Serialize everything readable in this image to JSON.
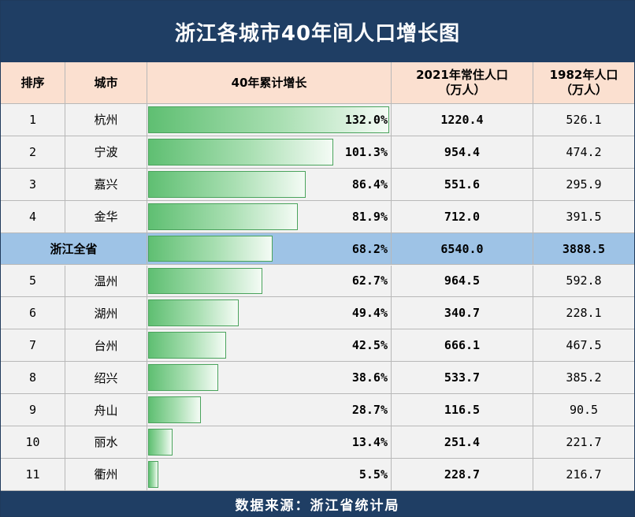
{
  "title": "浙江各城市40年间人口增长图",
  "footer": "数据来源：浙江省统计局",
  "colors": {
    "header_bg": "#1f3e64",
    "table_header": "#fbe0d0",
    "province_row": "#9ec3e6",
    "bar": "#5fbf72"
  },
  "headers": {
    "rank": "排序",
    "city": "城市",
    "growth": "40年累计增长",
    "pop2021_line1": "2021年常住人口",
    "pop2021_line2": "（万人）",
    "pop1982_line1": "1982年人口",
    "pop1982_line2": "（万人）"
  },
  "chart_data": {
    "type": "bar",
    "title": "浙江各城市40年间人口增长图",
    "orientation": "horizontal",
    "xlim": [
      0,
      132.0
    ],
    "columns": [
      "排序",
      "城市",
      "40年累计增长",
      "2021年常住人口（万人）",
      "1982年人口（万人）"
    ],
    "rows": [
      {
        "rank": "1",
        "city": "杭州",
        "growth": 132.0,
        "growth_label": "132.0%",
        "pop2021": "1220.4",
        "pop1982": "526.1",
        "province": false
      },
      {
        "rank": "2",
        "city": "宁波",
        "growth": 101.3,
        "growth_label": "101.3%",
        "pop2021": "954.4",
        "pop1982": "474.2",
        "province": false
      },
      {
        "rank": "3",
        "city": "嘉兴",
        "growth": 86.4,
        "growth_label": "86.4%",
        "pop2021": "551.6",
        "pop1982": "295.9",
        "province": false
      },
      {
        "rank": "4",
        "city": "金华",
        "growth": 81.9,
        "growth_label": "81.9%",
        "pop2021": "712.0",
        "pop1982": "391.5",
        "province": false
      },
      {
        "rank": "",
        "city": "浙江全省",
        "growth": 68.2,
        "growth_label": "68.2%",
        "pop2021": "6540.0",
        "pop1982": "3888.5",
        "province": true
      },
      {
        "rank": "5",
        "city": "温州",
        "growth": 62.7,
        "growth_label": "62.7%",
        "pop2021": "964.5",
        "pop1982": "592.8",
        "province": false
      },
      {
        "rank": "6",
        "city": "湖州",
        "growth": 49.4,
        "growth_label": "49.4%",
        "pop2021": "340.7",
        "pop1982": "228.1",
        "province": false
      },
      {
        "rank": "7",
        "city": "台州",
        "growth": 42.5,
        "growth_label": "42.5%",
        "pop2021": "666.1",
        "pop1982": "467.5",
        "province": false
      },
      {
        "rank": "8",
        "city": "绍兴",
        "growth": 38.6,
        "growth_label": "38.6%",
        "pop2021": "533.7",
        "pop1982": "385.2",
        "province": false
      },
      {
        "rank": "9",
        "city": "舟山",
        "growth": 28.7,
        "growth_label": "28.7%",
        "pop2021": "116.5",
        "pop1982": "90.5",
        "province": false
      },
      {
        "rank": "10",
        "city": "丽水",
        "growth": 13.4,
        "growth_label": "13.4%",
        "pop2021": "251.4",
        "pop1982": "221.7",
        "province": false
      },
      {
        "rank": "11",
        "city": "衢州",
        "growth": 5.5,
        "growth_label": "5.5%",
        "pop2021": "228.7",
        "pop1982": "216.7",
        "province": false
      }
    ]
  }
}
